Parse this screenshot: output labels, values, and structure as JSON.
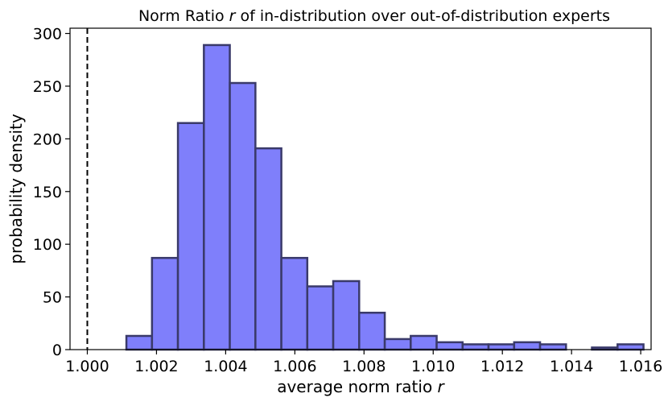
{
  "chart_data": {
    "type": "bar",
    "title": "Norm Ratio r of in-distribution over out-of-distribution experts",
    "xlabel": "average norm ratio r",
    "ylabel": "probability density",
    "xlim": [
      0.9995,
      1.0163
    ],
    "ylim": [
      0,
      305
    ],
    "grid": false,
    "reference_line": {
      "x": 1.0,
      "style": "dashed",
      "color": "#000000"
    },
    "bar_color": "#7f7ffb",
    "bar_edge_color": "#3a3a6a",
    "bin_edges": [
      1.00113,
      1.00187,
      1.00262,
      1.00337,
      1.00412,
      1.00486,
      1.00561,
      1.00636,
      1.00711,
      1.00786,
      1.0086,
      1.00935,
      1.0101,
      1.01085,
      1.0116,
      1.01234,
      1.01309,
      1.01384,
      1.01459,
      1.01533,
      1.01608
    ],
    "values": [
      13,
      87,
      215,
      289,
      253,
      191,
      87,
      60,
      65,
      35,
      10,
      13,
      7,
      5,
      5,
      7,
      5,
      0,
      2,
      5
    ],
    "xticks": [
      1.0,
      1.002,
      1.004,
      1.006,
      1.008,
      1.01,
      1.012,
      1.014,
      1.016
    ],
    "xtick_labels": [
      "1.000",
      "1.002",
      "1.004",
      "1.006",
      "1.008",
      "1.010",
      "1.012",
      "1.014",
      "1.016"
    ],
    "yticks": [
      0,
      50,
      100,
      150,
      200,
      250,
      300
    ],
    "ytick_labels": [
      "0",
      "50",
      "100",
      "150",
      "200",
      "250",
      "300"
    ]
  }
}
